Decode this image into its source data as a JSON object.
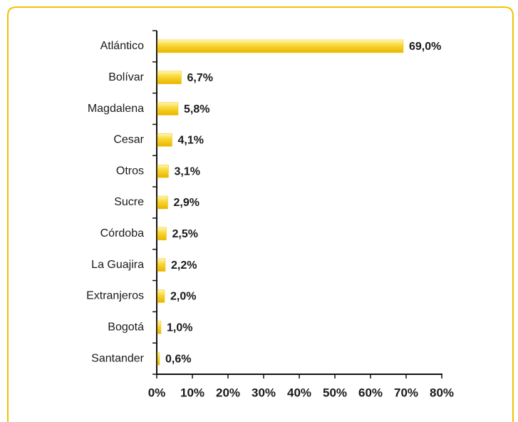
{
  "chart_data": {
    "type": "bar",
    "orientation": "horizontal",
    "categories": [
      "Atlántico",
      "Bolívar",
      "Magdalena",
      "Cesar",
      "Otros",
      "Sucre",
      "Córdoba",
      "La Guajira",
      "Extranjeros",
      "Bogotá",
      "Santander"
    ],
    "values": [
      69.0,
      6.7,
      5.8,
      4.1,
      3.1,
      2.9,
      2.5,
      2.2,
      2.0,
      1.0,
      0.6
    ],
    "value_labels": [
      "69,0%",
      "6,7%",
      "5,8%",
      "4,1%",
      "3,1%",
      "2,9%",
      "2,5%",
      "2,2%",
      "2,0%",
      "1,0%",
      "0,6%"
    ],
    "color": "#f5c518",
    "xlim": [
      0,
      80
    ],
    "xticks": [
      {
        "value": 0,
        "label": "0%"
      },
      {
        "value": 10,
        "label": "10%"
      },
      {
        "value": 20,
        "label": "20%"
      },
      {
        "value": 30,
        "label": "30%"
      },
      {
        "value": 40,
        "label": "40%"
      },
      {
        "value": 50,
        "label": "50%"
      },
      {
        "value": 60,
        "label": "60%"
      },
      {
        "value": 70,
        "label": "70%"
      },
      {
        "value": 80,
        "label": "80%"
      }
    ],
    "grid": false
  }
}
